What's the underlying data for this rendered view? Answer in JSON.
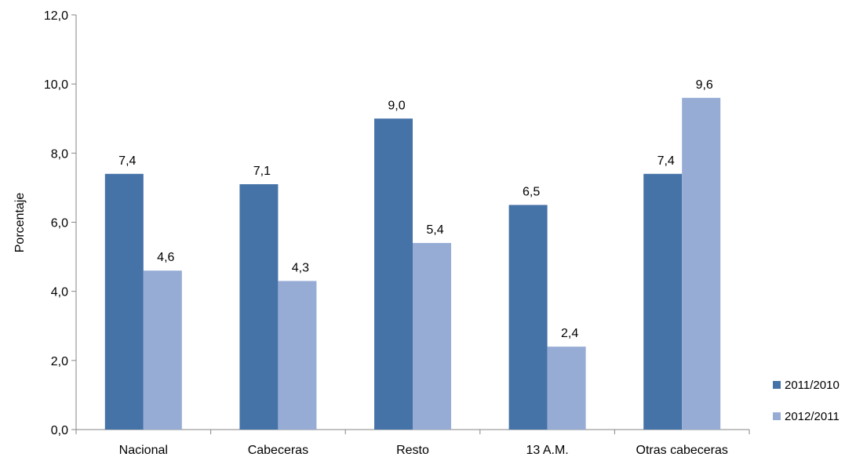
{
  "chart_data": {
    "type": "bar",
    "title": "",
    "xlabel": "",
    "ylabel": "Porcentaje",
    "ylim": [
      0,
      12
    ],
    "yticks": [
      "0,0",
      "2,0",
      "4,0",
      "6,0",
      "8,0",
      "10,0",
      "12,0"
    ],
    "categories": [
      "Nacional",
      "Cabeceras",
      "Resto",
      "13 A.M.",
      "Otras cabeceras"
    ],
    "series": [
      {
        "name": "2011/2010",
        "color": "#4572a7",
        "values": [
          7.4,
          7.1,
          9.0,
          6.5,
          7.4
        ],
        "labels": [
          "7,4",
          "7,1",
          "9,0",
          "6,5",
          "7,4"
        ]
      },
      {
        "name": "2012/2011",
        "color": "#96acd4",
        "values": [
          4.6,
          4.3,
          5.4,
          2.4,
          9.6
        ],
        "labels": [
          "4,6",
          "4,3",
          "5,4",
          "2,4",
          "9,6"
        ]
      }
    ],
    "grid": false,
    "legend_position": "right"
  }
}
